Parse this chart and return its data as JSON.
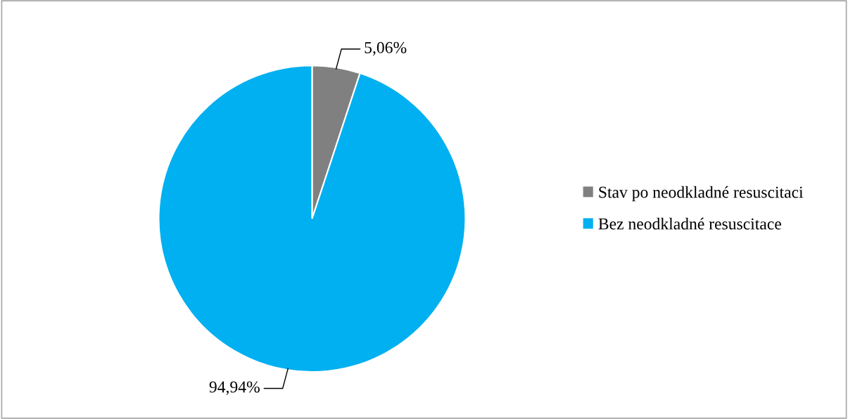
{
  "chart_data": {
    "type": "pie",
    "categories": [
      "Stav po neodkladné resuscitaci",
      "Bez neodkladné resuscitace"
    ],
    "values": [
      5.06,
      94.94
    ],
    "colors": [
      "#808080",
      "#00b0f0"
    ],
    "value_labels": [
      "5,06%",
      "94,94%"
    ],
    "legend": "right"
  }
}
